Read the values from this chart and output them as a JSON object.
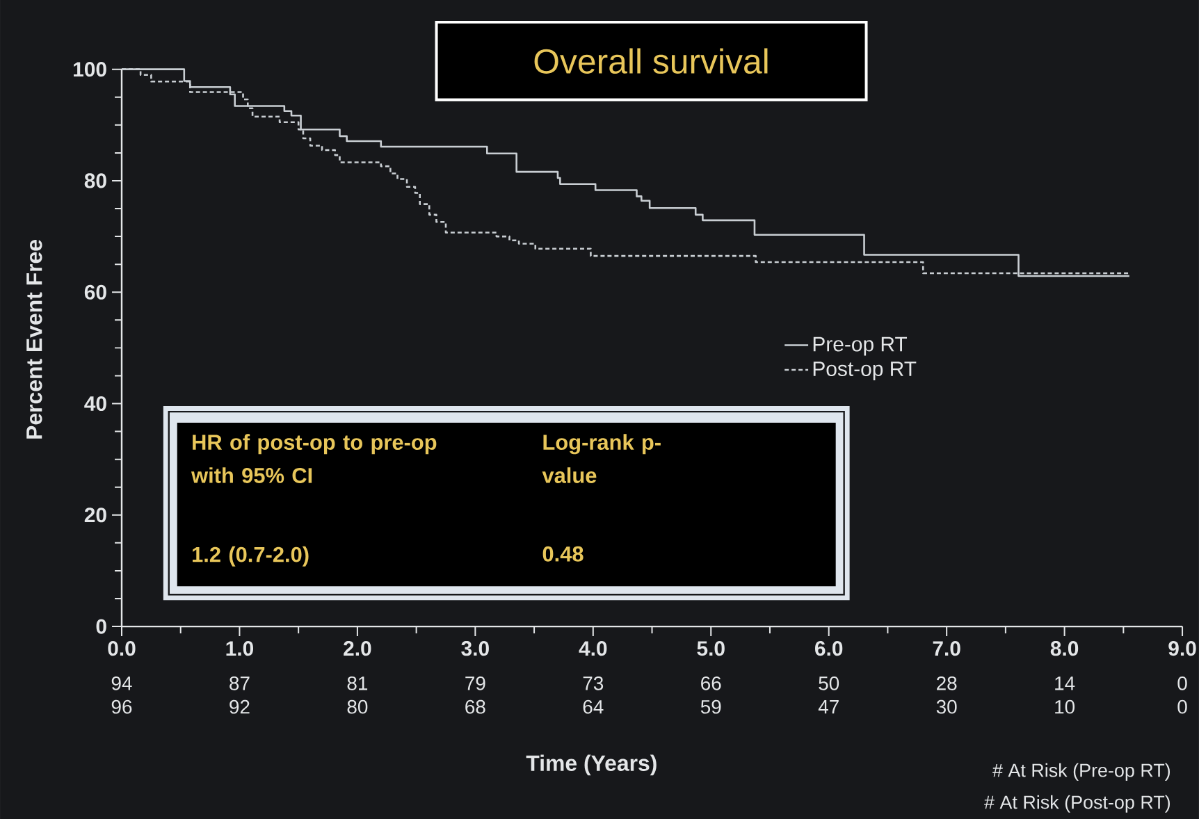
{
  "chart_data": {
    "type": "step",
    "title": "Overall survival",
    "xlabel": "Time (Years)",
    "ylabel": "Percent Event Free",
    "xlim": [
      0,
      9
    ],
    "ylim": [
      0,
      100
    ],
    "xticks": [
      {
        "value": 0,
        "label": "0.0"
      },
      {
        "value": 1,
        "label": "1.0"
      },
      {
        "value": 2,
        "label": "2.0"
      },
      {
        "value": 3,
        "label": "3.0"
      },
      {
        "value": 4,
        "label": "4.0"
      },
      {
        "value": 5,
        "label": "5.0"
      },
      {
        "value": 6,
        "label": "6.0"
      },
      {
        "value": 7,
        "label": "7.0"
      },
      {
        "value": 8,
        "label": "8.0"
      },
      {
        "value": 9,
        "label": "9.0"
      }
    ],
    "yticks": [
      0,
      20,
      40,
      60,
      80,
      100
    ],
    "legend": "right",
    "series": [
      {
        "name": "Pre-op RT",
        "color": "#c9ced3",
        "line_style": "solid",
        "x": [
          0,
          0.49,
          0.53,
          0.58,
          0.92,
          0.96,
          1.38,
          1.44,
          1.52,
          1.85,
          1.91,
          2.2,
          3.1,
          3.35,
          3.7,
          3.72,
          4.02,
          4.37,
          4.41,
          4.48,
          4.87,
          4.93,
          5.37,
          6.3,
          7.61,
          8.55
        ],
        "values": [
          100,
          100,
          97.9,
          96.8,
          95.5,
          93.4,
          92.5,
          91.7,
          89.2,
          88,
          87.1,
          86.1,
          84.9,
          81.6,
          80.5,
          79.4,
          78.3,
          77.2,
          76.4,
          75.1,
          73.9,
          72.9,
          70.3,
          66.7,
          62.9,
          62.9
        ]
      },
      {
        "name": "Post-op RT",
        "color": "#c9ced3",
        "line_style": "dashed",
        "x": [
          0,
          0.16,
          0.25,
          0.58,
          1.03,
          1.07,
          1.11,
          1.34,
          1.5,
          1.54,
          1.6,
          1.7,
          1.81,
          1.85,
          2.2,
          2.28,
          2.34,
          2.42,
          2.49,
          2.53,
          2.61,
          2.67,
          2.75,
          3.18,
          3.29,
          3.37,
          3.51,
          3.98,
          5.38,
          6.8,
          8.54
        ],
        "values": [
          100,
          99,
          97.8,
          95.9,
          94.6,
          93,
          91.5,
          90.5,
          89.2,
          87.6,
          86.3,
          85.5,
          84.6,
          83.3,
          82.6,
          81.3,
          80.3,
          78.9,
          77.8,
          75.8,
          73.9,
          72.6,
          70.7,
          70,
          69.3,
          68.7,
          67.8,
          66.5,
          65.4,
          63.4,
          63.4
        ]
      }
    ],
    "annotations": [
      "HR of post-op to pre-op with 95% CI",
      "Log-rank p-value",
      "1.2 (0.7-2.0)",
      "0.48",
      "# At Risk (Pre-op RT)",
      "# At Risk (Post-op RT)",
      "94",
      "87",
      "81",
      "79",
      "73",
      "66",
      "50",
      "28",
      "14",
      "0",
      "96",
      "92",
      "80",
      "68",
      "64",
      "59",
      "47",
      "30",
      "10",
      "0"
    ]
  }
}
